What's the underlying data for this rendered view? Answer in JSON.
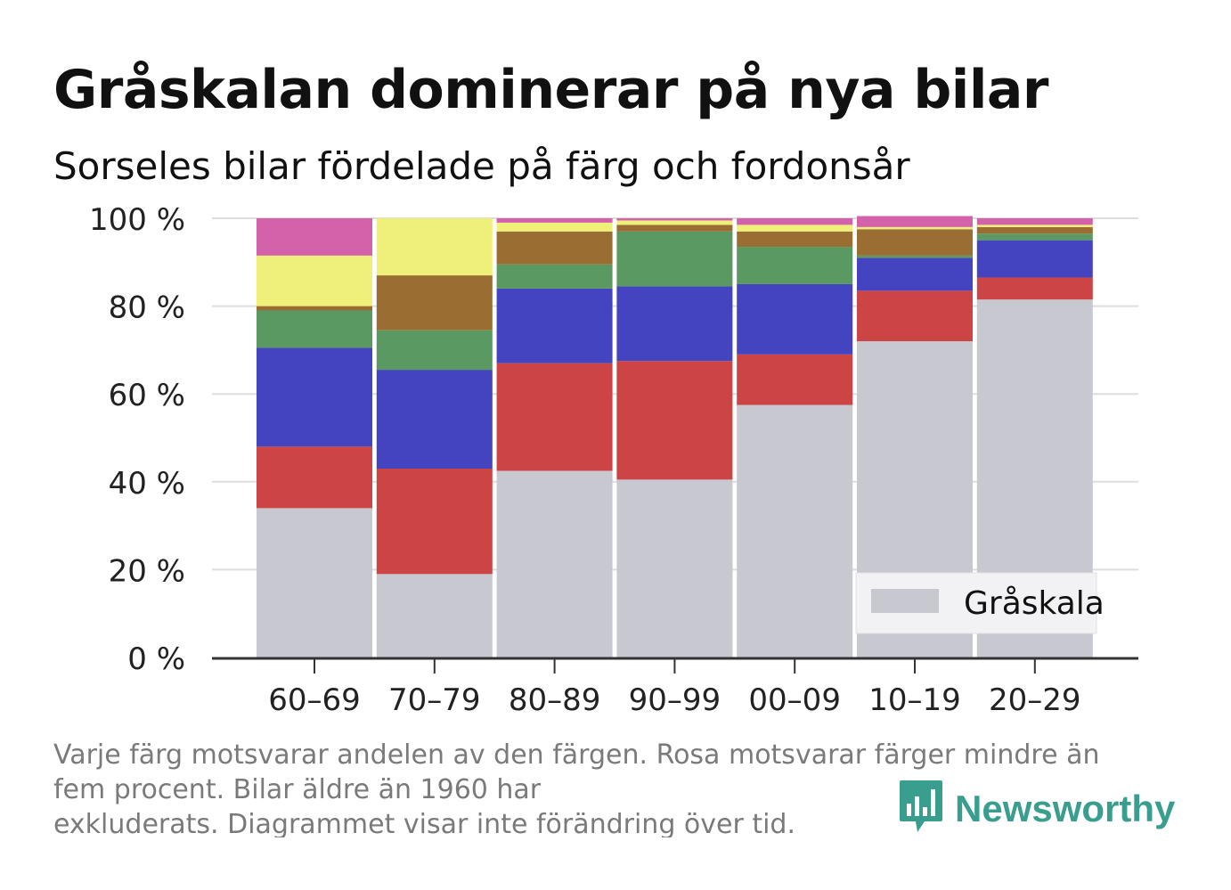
{
  "title": "Gråskalan dominerar på nya bilar",
  "subtitle": "Sorseles bilar fördelade på färg och fordonsår",
  "footnote": [
    "Varje färg motsvarar andelen av den färgen. Rosa motsvarar färger mindre än",
    "fem procent. Bilar äldre än 1960 har",
    "exkluderats. Diagrammet visar inte förändring över tid."
  ],
  "brand": {
    "name": "Newsworthy",
    "icon": "bar-chart-speech-bubble-icon",
    "color": "#3a9e8f"
  },
  "chart_data": {
    "type": "bar",
    "stacked": true,
    "categories": [
      "60–69",
      "70–79",
      "80–89",
      "90–99",
      "00–09",
      "10–19",
      "20–29"
    ],
    "y_ticks": [
      "0 %",
      "20 %",
      "40 %",
      "60 %",
      "80 %",
      "100 %"
    ],
    "ylim": [
      0,
      100
    ],
    "grid": true,
    "legend_position": "bottom-right",
    "series": [
      {
        "color": "#c8c8d0",
        "name": "Gråskala",
        "values": [
          34,
          19,
          42.5,
          40.5,
          57.5,
          72,
          81.5
        ]
      },
      {
        "color": "#cc4444",
        "values": [
          14,
          24,
          24.5,
          27,
          11.5,
          11.5,
          5
        ]
      },
      {
        "color": "#4444c0",
        "values": [
          22.5,
          22.5,
          17,
          17,
          16,
          7.5,
          8.5
        ]
      },
      {
        "color": "#5a9a62",
        "values": [
          8.5,
          9,
          5.5,
          12.5,
          8.5,
          0.5,
          1.5
        ]
      },
      {
        "color": "#9a6e32",
        "values": [
          1,
          12.5,
          7.5,
          1.5,
          3.5,
          6,
          1.5
        ]
      },
      {
        "color": "#eef07a",
        "values": [
          11.5,
          13,
          2,
          1,
          1.5,
          0.5,
          0.5
        ]
      },
      {
        "color": "#d462ab",
        "values": [
          8.5,
          0,
          1,
          0.5,
          1.5,
          2.5,
          1.5
        ]
      }
    ]
  }
}
